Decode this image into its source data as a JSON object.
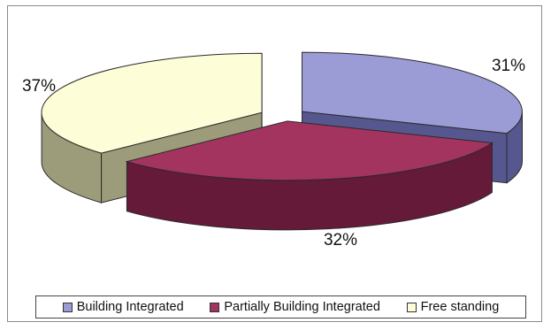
{
  "chart_data": {
    "type": "pie",
    "style": "3d-exploded",
    "categories": [
      "Building Integrated",
      "Partially Building Integrated",
      "Free standing"
    ],
    "values": [
      31,
      32,
      37
    ],
    "data_labels": [
      "31%",
      "32%",
      "37%"
    ],
    "title": "",
    "legend_position": "bottom",
    "colors": {
      "Building Integrated": {
        "top": "#9b9bd6",
        "side": "#57578f"
      },
      "Partially Building Integrated": {
        "top": "#a2345f",
        "side": "#651a3a"
      },
      "Free standing": {
        "top": "#fdfdd8",
        "side": "#9c9c7a"
      }
    }
  }
}
